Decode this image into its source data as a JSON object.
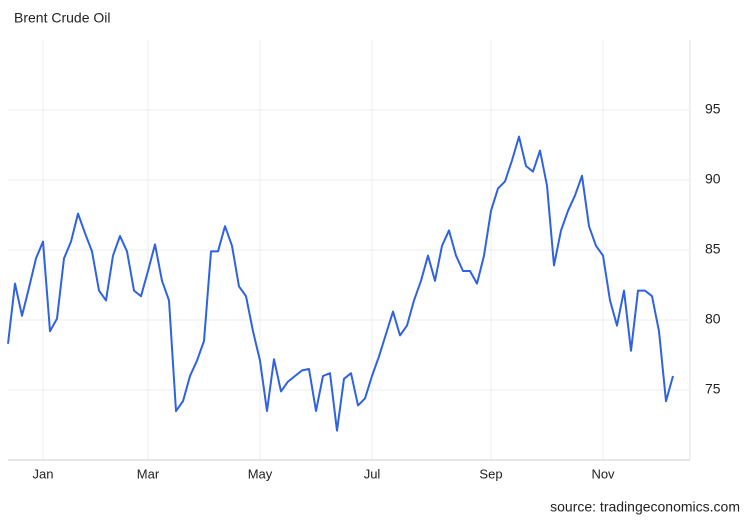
{
  "chart_data": {
    "type": "line",
    "title": "Brent Crude Oil",
    "source": "source: tradingeconomics.com",
    "categories": [
      null,
      null,
      null,
      null,
      null,
      "Jan",
      null,
      null,
      null,
      null,
      null,
      null,
      null,
      null,
      null,
      null,
      null,
      null,
      null,
      null,
      "Mar",
      null,
      null,
      null,
      null,
      null,
      null,
      null,
      null,
      null,
      null,
      null,
      null,
      null,
      null,
      null,
      "May",
      null,
      null,
      null,
      null,
      null,
      null,
      null,
      null,
      null,
      null,
      null,
      null,
      null,
      null,
      null,
      "Jul",
      null,
      null,
      null,
      null,
      null,
      null,
      null,
      null,
      null,
      null,
      null,
      null,
      null,
      null,
      null,
      null,
      "Sep",
      null,
      null,
      null,
      null,
      null,
      null,
      null,
      null,
      null,
      null,
      null,
      null,
      null,
      null,
      null,
      "Nov",
      null,
      null,
      null,
      null,
      null,
      null,
      null,
      null,
      null,
      null
    ],
    "series": [
      {
        "name": "Brent Crude Oil",
        "color": "#2f62e3",
        "values": [
          78.3,
          82.6,
          80.3,
          82.3,
          84.4,
          85.6,
          79.2,
          80.1,
          84.4,
          85.6,
          87.6,
          86.2,
          84.9,
          82.1,
          81.4,
          84.6,
          86.0,
          84.9,
          82.1,
          81.7,
          83.5,
          85.4,
          82.8,
          81.4,
          73.5,
          74.2,
          76.0,
          77.1,
          78.5,
          84.9,
          84.9,
          86.7,
          85.3,
          82.4,
          81.7,
          79.2,
          77.1,
          73.5,
          77.2,
          74.9,
          75.6,
          76.0,
          76.4,
          76.5,
          73.5,
          76.0,
          76.2,
          72.1,
          75.8,
          76.2,
          73.9,
          74.4,
          76.0,
          77.4,
          79.0,
          80.6,
          78.9,
          79.6,
          81.4,
          82.8,
          84.6,
          82.8,
          85.3,
          86.4,
          84.6,
          83.5,
          83.5,
          82.6,
          84.6,
          87.8,
          89.4,
          89.9,
          91.4,
          93.1,
          91.0,
          90.6,
          92.1,
          89.6,
          83.9,
          86.4,
          87.8,
          88.9,
          90.3,
          86.7,
          85.3,
          84.6,
          81.4,
          79.6,
          82.1,
          77.8,
          82.1,
          82.1,
          81.7,
          79.2,
          74.2,
          76.0
        ]
      }
    ],
    "ylim": [
      70,
      100
    ],
    "yticks": [
      75,
      80,
      85,
      90,
      95
    ],
    "grid": true
  }
}
